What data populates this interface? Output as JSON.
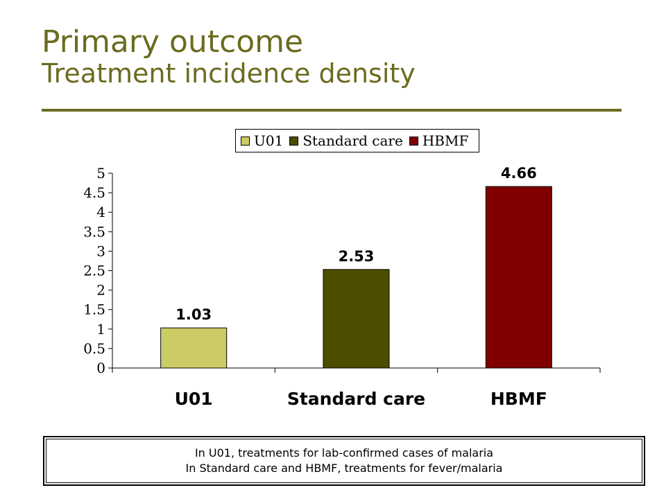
{
  "slide": {
    "title": "Primary outcome",
    "subtitle": "Treatment incidence density",
    "note_lines": [
      "In U01, treatments for lab-confirmed cases of malaria",
      "In Standard care and HBMF, treatments for fever/malaria"
    ]
  },
  "colors": {
    "title": "#6b6b1f",
    "U01": "#cccc66",
    "Standard care": "#4d4d00",
    "HBMF": "#800000"
  },
  "chart_data": {
    "type": "bar",
    "categories": [
      "U01",
      "Standard care",
      "HBMF"
    ],
    "values": [
      1.03,
      2.53,
      4.66
    ],
    "data_labels": [
      "1.03",
      "2.53",
      "4.66"
    ],
    "legend": [
      "U01",
      "Standard care",
      "HBMF"
    ],
    "legend_position": "top",
    "ylim": [
      0,
      5
    ],
    "yticks": [
      "0",
      "0.5",
      "1",
      "1.5",
      "2",
      "2.5",
      "3",
      "3.5",
      "4",
      "4.5",
      "5"
    ],
    "grid": false,
    "title": "",
    "xlabel": "",
    "ylabel": ""
  }
}
